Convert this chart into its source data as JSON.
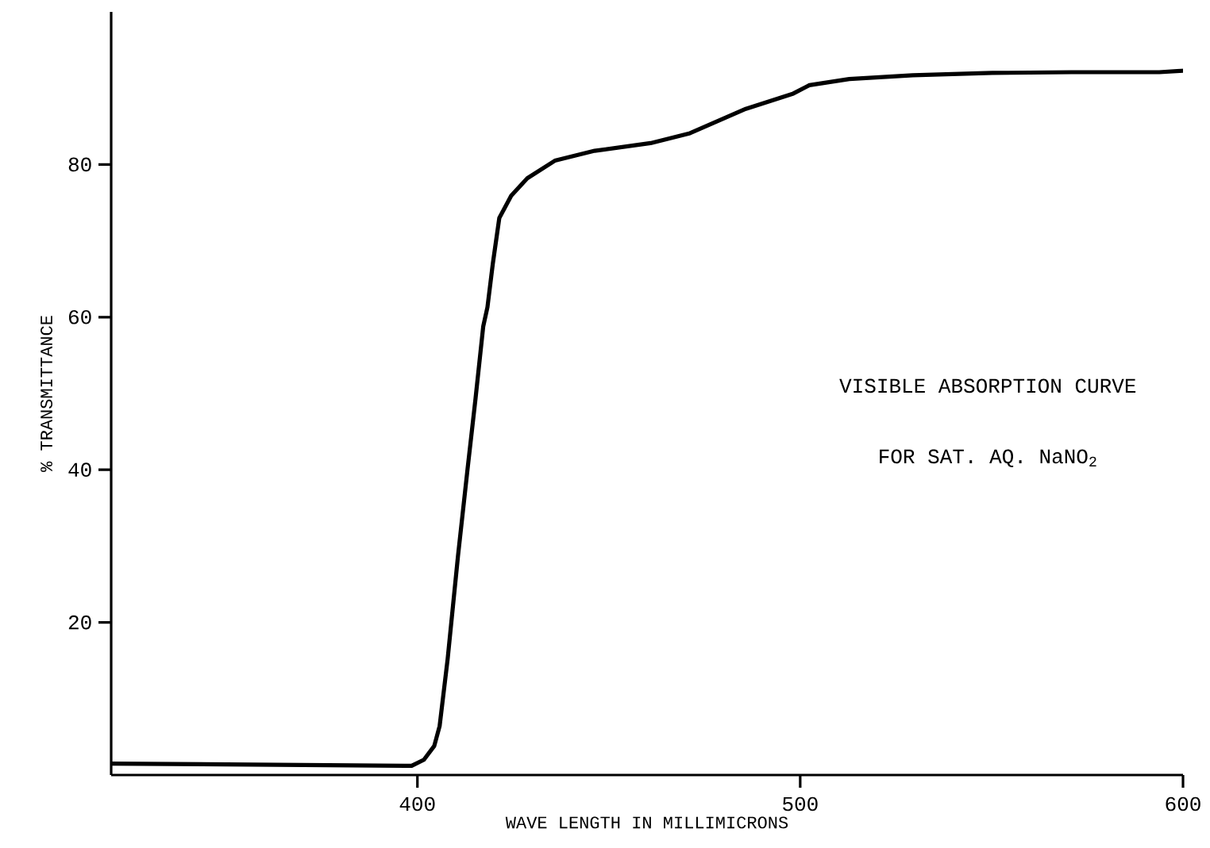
{
  "chart_data": {
    "type": "line",
    "xlabel": "WAVE LENGTH IN MILLIMICRONS",
    "ylabel": "% TRANSMITTANCE",
    "annotations": [
      "VISIBLE ABSORPTION CURVE",
      "FOR SAT. AQ. NaNO$_{2}$"
    ],
    "xlim": [
      320,
      600
    ],
    "ylim": [
      0,
      100
    ],
    "xticks": [
      400,
      500,
      600
    ],
    "yticks": [
      20,
      40,
      60,
      80
    ],
    "grid": false,
    "marker": "none",
    "line_style": "solid",
    "series": [
      {
        "color": "#000000",
        "x": [
          320,
          398.5,
          401.7,
          404.4,
          405.8,
          407.9,
          410.6,
          413.1,
          415.2,
          417.2,
          418.3,
          419.7,
          421.4,
          424.5,
          428.7,
          435.9,
          446.3,
          460.9,
          471.2,
          485.8,
          498.2,
          502.4,
          512.8,
          529.4,
          550.2,
          570.9,
          593.8,
          600
        ],
        "values": [
          1.5,
          1.2,
          2.0,
          3.8,
          6.4,
          15.2,
          28.7,
          40.1,
          49.4,
          58.8,
          61.3,
          67,
          73,
          75.9,
          78.2,
          80.5,
          81.8,
          82.8,
          84.1,
          87.3,
          89.3,
          90.4,
          91.2,
          91.7,
          92,
          92.1,
          92.1,
          92.3
        ]
      }
    ]
  }
}
